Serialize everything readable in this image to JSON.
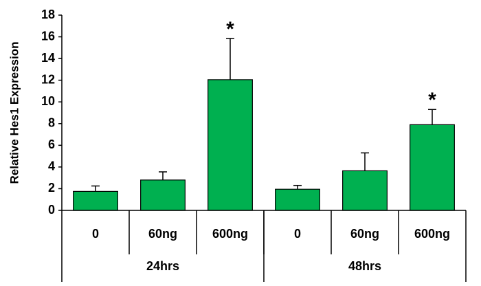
{
  "chart_data": {
    "type": "bar",
    "y_label": "Relative Hes1 Expression",
    "categories": [
      "0",
      "60ng",
      "600ng",
      "0",
      "60ng",
      "600ng"
    ],
    "groups": [
      "24hrs",
      "48hrs"
    ],
    "values": [
      1.75,
      2.8,
      12.05,
      1.95,
      3.65,
      7.9
    ],
    "errors": [
      0.5,
      0.75,
      3.8,
      0.35,
      1.65,
      1.4
    ],
    "annotations": [
      null,
      null,
      "*",
      null,
      null,
      "*"
    ],
    "color": "#00b050",
    "ylim": [
      0,
      18
    ],
    "yticks": [
      0,
      2,
      4,
      6,
      8,
      10,
      12,
      14,
      16,
      18
    ],
    "grid": false
  }
}
